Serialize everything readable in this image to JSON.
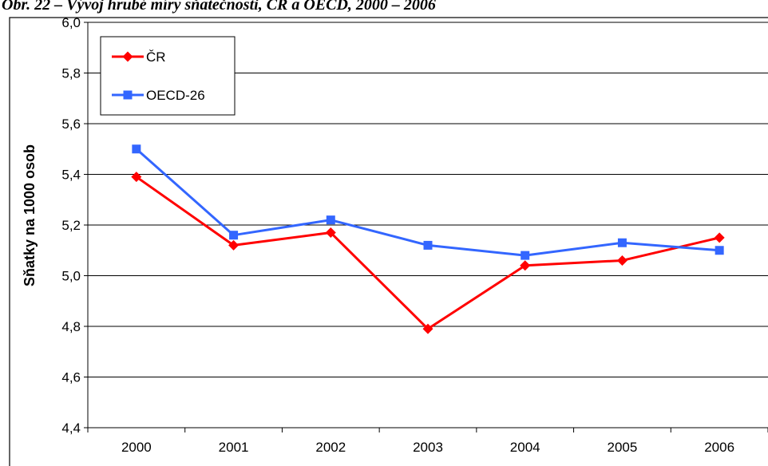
{
  "chart_data": {
    "type": "line",
    "title": "Obr. 22 – Vývoj hrubé míry sňatečnosti, ČR a OECD, 2000 – 2006",
    "xlabel": "",
    "ylabel": "Sňatky na 1000 osob",
    "categories": [
      "2000",
      "2001",
      "2002",
      "2003",
      "2004",
      "2005",
      "2006"
    ],
    "ylim": [
      4.4,
      6.0
    ],
    "y_ticks": [
      "4,4",
      "4,6",
      "4,8",
      "5,0",
      "5,2",
      "5,4",
      "5,6",
      "5,8",
      "6,0"
    ],
    "grid": true,
    "legend_position": "top-left",
    "series": [
      {
        "name": "ČR",
        "color": "#ff0000",
        "marker": "diamond",
        "values": [
          5.39,
          5.12,
          5.17,
          4.79,
          5.04,
          5.06,
          5.15
        ]
      },
      {
        "name": "OECD-26",
        "color": "#3366ff",
        "marker": "square",
        "values": [
          5.5,
          5.16,
          5.22,
          5.12,
          5.08,
          5.13,
          5.1
        ]
      }
    ]
  }
}
